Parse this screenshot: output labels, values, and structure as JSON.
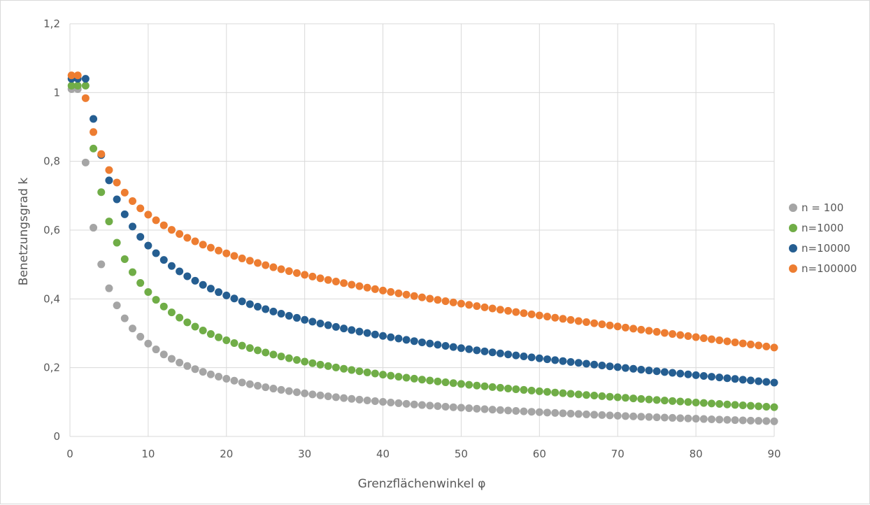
{
  "chart_data": {
    "type": "scatter",
    "title": "",
    "xlabel": "Grenzflächenwinkel φ",
    "ylabel": "Benetzungsgrad k",
    "xlim": [
      0,
      90
    ],
    "ylim": [
      0,
      1.2
    ],
    "x_ticks": [
      "0",
      "10",
      "20",
      "30",
      "40",
      "50",
      "60",
      "70",
      "80",
      "90"
    ],
    "y_ticks": [
      "0",
      "0,2",
      "0,4",
      "0,6",
      "0,8",
      "1",
      "1,2"
    ],
    "grid": true,
    "legend_position": "right",
    "series": [
      {
        "name": "n = 100",
        "color": "#a5a5a5",
        "x_start": 1,
        "x_end": 90,
        "x_step": 1,
        "a": 0.27,
        "b": 0.67,
        "k0": 1.01
      },
      {
        "name": "n=1000",
        "color": "#70ad47",
        "x_start": 1,
        "x_end": 90,
        "x_step": 1,
        "a": 0.42,
        "b": 0.57,
        "k0": 1.02
      },
      {
        "name": "n=10000",
        "color": "#255e91",
        "x_start": 1,
        "x_end": 90,
        "x_step": 1,
        "a": 0.555,
        "b": 0.42,
        "k0": 1.04
      },
      {
        "name": "n=100000",
        "color": "#ed7d31",
        "x_start": 1,
        "x_end": 90,
        "x_step": 1,
        "a": 0.645,
        "b": 0.26,
        "k0": 1.05
      }
    ]
  }
}
